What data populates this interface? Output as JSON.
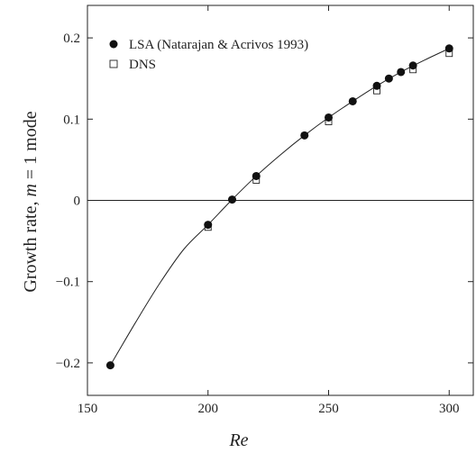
{
  "chart_data": {
    "type": "scatter",
    "xlabel": "Re",
    "ylabel_parts": [
      "Growth rate, ",
      "m",
      " = 1 mode"
    ],
    "xlim": [
      150,
      310
    ],
    "ylim": [
      -0.24,
      0.24
    ],
    "xticks": [
      150,
      200,
      250,
      300
    ],
    "xtick_labels": [
      "150",
      "200",
      "250",
      "300"
    ],
    "yticks": [
      -0.2,
      -0.1,
      0,
      0.1,
      0.2
    ],
    "ytick_labels": [
      "−0.2",
      "−0.1",
      "0",
      "0.1",
      "0.2"
    ],
    "grid": false,
    "legend_position": "top-left",
    "series": [
      {
        "name": "LSA (Natarajan & Acrivos 1993)",
        "marker": "filled-circle",
        "x": [
          159.5,
          200,
          210,
          220,
          240,
          250,
          260,
          270,
          275,
          280,
          285,
          300
        ],
        "y": [
          -0.203,
          -0.03,
          0.001,
          0.03,
          0.08,
          0.102,
          0.122,
          0.141,
          0.15,
          0.158,
          0.166,
          0.187
        ]
      },
      {
        "name": "DNS",
        "marker": "open-square",
        "x": [
          200,
          220,
          250,
          270,
          285,
          300
        ],
        "y": [
          -0.033,
          0.025,
          0.097,
          0.135,
          0.161,
          0.181
        ]
      }
    ],
    "reference_line_y": 0,
    "fit_curve_x": [
      159.5,
      170,
      180,
      190,
      200,
      210,
      220,
      230,
      240,
      250,
      260,
      270,
      280,
      290,
      300
    ],
    "fit_curve_y": [
      -0.203,
      -0.15,
      -0.102,
      -0.06,
      -0.03,
      0.001,
      0.03,
      0.056,
      0.08,
      0.102,
      0.122,
      0.141,
      0.158,
      0.173,
      0.187
    ]
  }
}
